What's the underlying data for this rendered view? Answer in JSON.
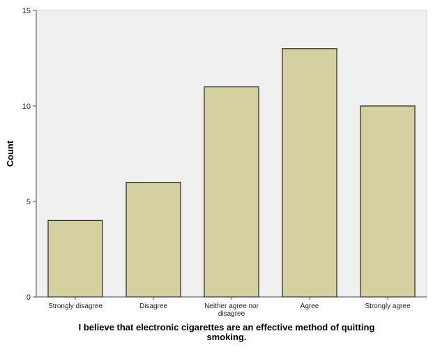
{
  "chart_data": {
    "type": "bar",
    "categories": [
      "Strongly disagree",
      "Disagree",
      "Neither agree nor disagree",
      "Agree",
      "Strongly agree"
    ],
    "category_lines": [
      [
        "Strongly disagree"
      ],
      [
        "Disagree"
      ],
      [
        "Neither agree nor",
        "disagree"
      ],
      [
        "Agree"
      ],
      [
        "Strongly agree"
      ]
    ],
    "values": [
      4,
      6,
      11,
      13,
      10
    ],
    "title": "",
    "xlabel": "I believe that electronic cigarettes are an effective method of quitting smoking.",
    "xlabel_lines": [
      "I believe that electronic cigarettes are an effective method of quitting",
      "smoking."
    ],
    "ylabel": "Count",
    "ylim": [
      0,
      15
    ],
    "yticks": [
      0,
      5,
      10,
      15
    ],
    "grid": false,
    "colors": {
      "bar_fill": "#d4d0a0",
      "bar_stroke": "#333333",
      "plot_background": "#f0f0f0",
      "axis": "#444444"
    }
  }
}
